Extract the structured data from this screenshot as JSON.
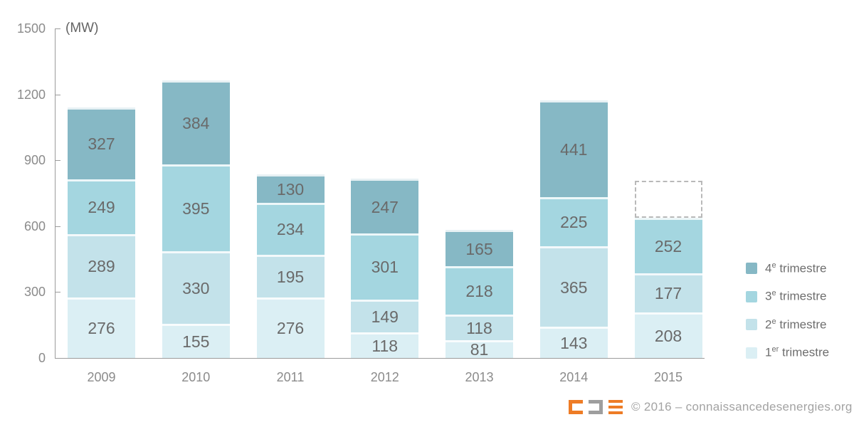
{
  "chart_data": {
    "type": "bar",
    "stacked": true,
    "unit_label": "(MW)",
    "xlabel": "",
    "ylabel": "(MW)",
    "ylim": [
      0,
      1500
    ],
    "yticks": [
      0,
      300,
      600,
      900,
      1200,
      1500
    ],
    "grid": false,
    "legend_position": "right",
    "categories": [
      "2009",
      "2010",
      "2011",
      "2012",
      "2013",
      "2014",
      "2015"
    ],
    "series": [
      {
        "name": "1er trimestre",
        "label_parts": {
          "base": "1",
          "sup": "er",
          "rest": " trimestre"
        },
        "color": "#dbeff4",
        "values": [
          276,
          155,
          276,
          118,
          81,
          143,
          208
        ]
      },
      {
        "name": "2e trimestre",
        "label_parts": {
          "base": "2",
          "sup": "e",
          "rest": " trimestre"
        },
        "color": "#c3e2ea",
        "values": [
          289,
          330,
          195,
          149,
          118,
          365,
          177
        ]
      },
      {
        "name": "3e trimestre",
        "label_parts": {
          "base": "3",
          "sup": "e",
          "rest": " trimestre"
        },
        "color": "#a4d6e0",
        "values": [
          249,
          395,
          234,
          301,
          218,
          225,
          252
        ]
      },
      {
        "name": "4e trimestre",
        "label_parts": {
          "base": "4",
          "sup": "e",
          "rest": " trimestre"
        },
        "color": "#86b8c5",
        "values": [
          327,
          384,
          130,
          247,
          165,
          441,
          null
        ]
      }
    ],
    "legend_order_top_to_bottom": [
      "4e trimestre",
      "3e trimestre",
      "2e trimestre",
      "1er trimestre"
    ],
    "forecast_outline": {
      "category": "2015",
      "style": "dashed",
      "estimated_mw": 170
    }
  },
  "footer": {
    "copyright": "© 2016 – connaissancedesenergies.org",
    "logo_orange": "#ee7c26",
    "logo_gray": "#9e9e9e"
  }
}
